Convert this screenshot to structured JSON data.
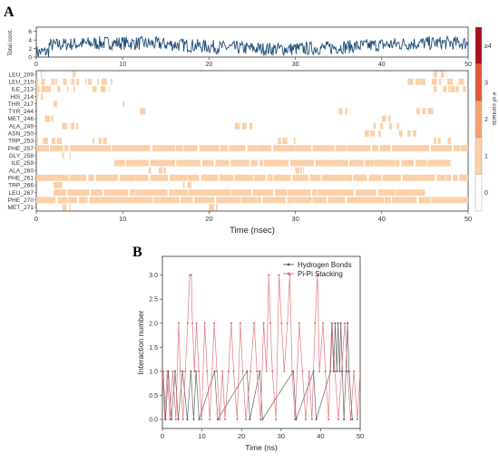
{
  "figure": {
    "panel_a_label": "A",
    "panel_b_label": "B"
  },
  "chart_data": [
    {
      "type": "line",
      "panel": "A-top",
      "ylabel": "Total cont.",
      "xlabel": "",
      "xlim": [
        0,
        50
      ],
      "ylim": [
        0,
        7
      ],
      "xticks": [
        "0",
        "10",
        "20",
        "30",
        "40",
        "50"
      ],
      "yticks": [
        "0",
        "2",
        "4",
        "6"
      ],
      "series": [
        {
          "values_summary": "noisy trace fluctuating mostly between 2 and 5 contacts, occasional dips to 0 near t=1 ns and peaks near 6"
        }
      ],
      "color": "#1f4e79"
    },
    {
      "type": "heatmap",
      "panel": "A-bottom",
      "xlabel": "Time (nsec)",
      "xlim": [
        0,
        50
      ],
      "xticks": [
        "0",
        "10",
        "20",
        "30",
        "40",
        "50"
      ],
      "residues": [
        "LEU_209",
        "LEU_210",
        "ILE_213",
        "HIS_214",
        "THR_217",
        "TYR_244",
        "MET_246",
        "ALA_249",
        "ASN_250",
        "TRP_253",
        "PHE_257",
        "GLY_258",
        "ILE_259",
        "ALA_260",
        "PHE_261",
        "TRP_266",
        "LEU_267",
        "PHE_270",
        "MET_271"
      ],
      "occupancy": [
        {
          "residue": "LEU_209",
          "segments": [
            [
              0.5,
              1.0
            ],
            [
              4.2,
              4.6
            ],
            [
              46,
              47.5
            ]
          ]
        },
        {
          "residue": "LEU_210",
          "segments": [
            [
              0,
              9.0
            ],
            [
              43,
              50
            ]
          ]
        },
        {
          "residue": "ILE_213",
          "segments": [
            [
              0,
              4.5
            ],
            [
              6.5,
              8.5
            ],
            [
              46,
              50
            ]
          ]
        },
        {
          "residue": "HIS_214",
          "segments": [
            [
              0,
              1.2
            ]
          ]
        },
        {
          "residue": "THR_217",
          "segments": [
            [
              2,
              3
            ],
            [
              10,
              11
            ]
          ]
        },
        {
          "residue": "TYR_244",
          "segments": [
            [
              12,
              13
            ],
            [
              35,
              36
            ],
            [
              44,
              46
            ]
          ]
        },
        {
          "residue": "MET_246",
          "segments": [
            [
              1,
              2
            ],
            [
              40,
              41
            ]
          ]
        },
        {
          "residue": "ALA_249",
          "segments": [
            [
              3,
              5
            ],
            [
              23,
              25
            ],
            [
              39,
              42
            ]
          ]
        },
        {
          "residue": "ASN_250",
          "segments": [
            [
              38,
              40
            ],
            [
              42,
              44
            ]
          ]
        },
        {
          "residue": "TRP_253",
          "segments": [
            [
              0,
              3
            ],
            [
              6.5,
              8.5
            ],
            [
              28,
              30
            ],
            [
              46,
              48
            ]
          ]
        },
        {
          "residue": "PHE_257",
          "segments": [
            [
              0,
              50
            ]
          ]
        },
        {
          "residue": "GLY_258",
          "segments": [
            [
              3,
              4
            ]
          ]
        },
        {
          "residue": "ILE_259",
          "segments": [
            [
              9,
              48
            ]
          ]
        },
        {
          "residue": "ALA_260",
          "segments": [
            [
              13,
              15
            ],
            [
              30,
              31
            ]
          ]
        },
        {
          "residue": "PHE_261",
          "segments": [
            [
              0,
              50
            ]
          ]
        },
        {
          "residue": "TRP_266",
          "segments": [
            [
              2,
              3
            ],
            [
              17,
              18
            ]
          ]
        },
        {
          "residue": "LEU_267",
          "segments": [
            [
              2,
              45
            ]
          ]
        },
        {
          "residue": "PHE_270",
          "segments": [
            [
              0,
              50
            ]
          ]
        },
        {
          "residue": "MET_271",
          "segments": [
            [
              3,
              4
            ],
            [
              20,
              21
            ]
          ]
        }
      ],
      "colorbar": {
        "label": "# of contacts",
        "ticks": [
          "0",
          "1",
          "2",
          "3",
          "≥4"
        ],
        "colors": [
          "#ffffff",
          "#fbd0a8",
          "#f3a36b",
          "#e0573a",
          "#a8101a"
        ]
      }
    },
    {
      "type": "line",
      "panel": "B",
      "xlabel": "Time (ns)",
      "ylabel": "Interaction number",
      "xlim": [
        0,
        50
      ],
      "ylim": [
        0,
        3.2
      ],
      "xticks": [
        "0",
        "10",
        "20",
        "30",
        "40",
        "50"
      ],
      "yticks": [
        "0.0",
        "0.5",
        "1.0",
        "1.5",
        "2.0",
        "2.5",
        "3.0"
      ],
      "legend": "top-right",
      "series": [
        {
          "name": "Hydrogen Bonds",
          "color": "#555555",
          "points": [
            [
              0.2,
              1
            ],
            [
              0.8,
              0
            ],
            [
              1.5,
              1
            ],
            [
              2.3,
              0
            ],
            [
              3.2,
              1
            ],
            [
              4,
              0
            ],
            [
              5.1,
              1
            ],
            [
              6.3,
              0
            ],
            [
              7.2,
              1
            ],
            [
              7.9,
              0
            ],
            [
              8.5,
              1
            ],
            [
              9.3,
              0
            ],
            [
              13.2,
              1
            ],
            [
              14,
              0
            ],
            [
              21.4,
              1
            ],
            [
              22.1,
              0
            ],
            [
              24.6,
              1
            ],
            [
              25.3,
              0
            ],
            [
              33.1,
              1
            ],
            [
              33.8,
              0
            ],
            [
              38.2,
              1
            ],
            [
              38.9,
              0
            ],
            [
              42.5,
              1
            ],
            [
              42.9,
              2
            ],
            [
              43.3,
              1
            ],
            [
              43.7,
              2
            ],
            [
              44.1,
              1
            ],
            [
              44.4,
              2
            ],
            [
              44.8,
              1
            ],
            [
              45.1,
              2
            ],
            [
              45.5,
              1
            ],
            [
              45.9,
              0
            ],
            [
              46.4,
              1
            ],
            [
              46.8,
              2
            ],
            [
              47.2,
              1
            ],
            [
              48,
              0
            ]
          ]
        },
        {
          "name": "Pi-Pi Stacking",
          "color": "#e0606a",
          "points": [
            [
              0,
              1
            ],
            [
              0.6,
              0
            ],
            [
              1.2,
              1
            ],
            [
              1.9,
              0
            ],
            [
              2.6,
              1
            ],
            [
              3.4,
              0
            ],
            [
              4.1,
              2
            ],
            [
              4.5,
              1
            ],
            [
              5.2,
              0
            ],
            [
              5.8,
              1
            ],
            [
              6.4,
              2
            ],
            [
              6.9,
              3
            ],
            [
              7.3,
              3
            ],
            [
              7.6,
              2
            ],
            [
              8.1,
              1
            ],
            [
              8.6,
              2
            ],
            [
              9.2,
              1
            ],
            [
              9.9,
              0
            ],
            [
              10.7,
              2
            ],
            [
              11.3,
              1
            ],
            [
              12,
              0
            ],
            [
              13.1,
              2
            ],
            [
              13.8,
              1
            ],
            [
              14.5,
              0
            ],
            [
              15.2,
              1
            ],
            [
              15.8,
              0
            ],
            [
              16.7,
              1
            ],
            [
              17.4,
              2
            ],
            [
              18,
              1
            ],
            [
              18.9,
              0
            ],
            [
              19.7,
              2
            ],
            [
              20.3,
              1
            ],
            [
              21.1,
              0
            ],
            [
              22.3,
              1
            ],
            [
              23.2,
              2
            ],
            [
              23.9,
              1
            ],
            [
              24.8,
              0
            ],
            [
              25.6,
              2
            ],
            [
              26.3,
              1
            ],
            [
              26.9,
              3
            ],
            [
              27.3,
              2
            ],
            [
              27.8,
              1
            ],
            [
              28.7,
              0
            ],
            [
              29.5,
              3
            ],
            [
              30.1,
              2
            ],
            [
              30.8,
              1
            ],
            [
              31.6,
              2
            ],
            [
              32.2,
              3
            ],
            [
              32.8,
              1
            ],
            [
              33.5,
              0
            ],
            [
              34.6,
              2
            ],
            [
              35.4,
              1
            ],
            [
              36.2,
              0
            ],
            [
              37.1,
              1
            ],
            [
              37.8,
              0
            ],
            [
              38.6,
              2
            ],
            [
              39.2,
              3
            ],
            [
              39.7,
              1
            ],
            [
              40.6,
              2
            ],
            [
              41.2,
              1
            ],
            [
              42,
              0
            ],
            [
              42.8,
              2
            ],
            [
              43.6,
              1
            ],
            [
              44.5,
              0
            ],
            [
              45.3,
              1
            ],
            [
              46.1,
              2
            ],
            [
              46.8,
              1
            ],
            [
              47.6,
              0
            ],
            [
              48.4,
              1
            ],
            [
              49.3,
              0
            ],
            [
              50,
              1
            ]
          ]
        }
      ]
    }
  ]
}
